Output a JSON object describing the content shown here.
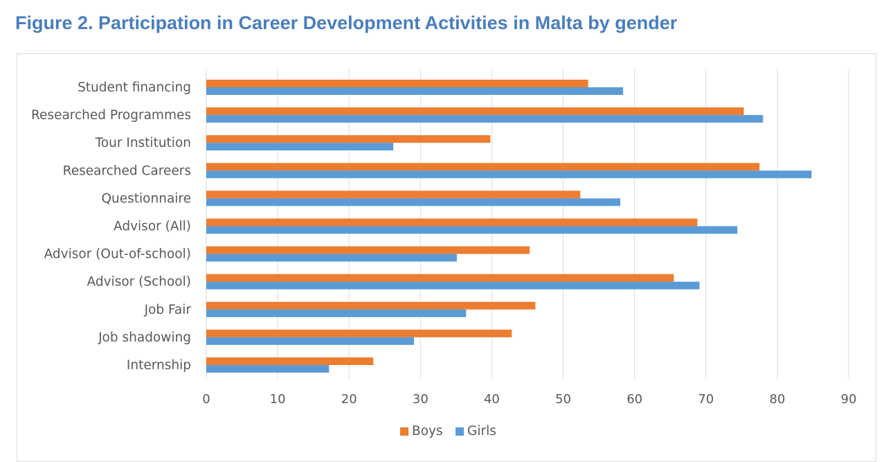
{
  "figure": {
    "title": "Figure  2. Participation in Career Development Activities in Malta by gender"
  },
  "colors": {
    "title": "#4a7ebb",
    "boys": "#ed7d31",
    "girls": "#5b9bd5",
    "grid": "#d9d9d9",
    "text": "#595959"
  },
  "chart_data": {
    "type": "bar",
    "orientation": "horizontal",
    "title": "Figure  2. Participation in Career Development Activities in Malta by gender",
    "xlabel": "",
    "ylabel": "",
    "xlim": [
      0,
      90
    ],
    "xticks": [
      0,
      10,
      20,
      30,
      40,
      50,
      60,
      70,
      80,
      90
    ],
    "grid": "vertical",
    "legend_position": "bottom",
    "categories": [
      "Student financing",
      "Researched Programmes",
      "Tour Institution",
      "Researched Careers",
      "Questionnaire",
      "Advisor (All)",
      "Advisor (Out-of-school)",
      "Advisor (School)",
      "Job Fair",
      "Job shadowing",
      "Internship"
    ],
    "series": [
      {
        "name": "Boys",
        "color": "#ed7d31",
        "values": [
          53.5,
          75.3,
          39.8,
          77.5,
          52.4,
          68.8,
          45.3,
          65.5,
          46.1,
          42.8,
          23.4
        ]
      },
      {
        "name": "Girls",
        "color": "#5b9bd5",
        "values": [
          58.4,
          78.0,
          26.2,
          84.8,
          58.0,
          74.4,
          35.1,
          69.1,
          36.4,
          29.1,
          17.2
        ]
      }
    ]
  }
}
